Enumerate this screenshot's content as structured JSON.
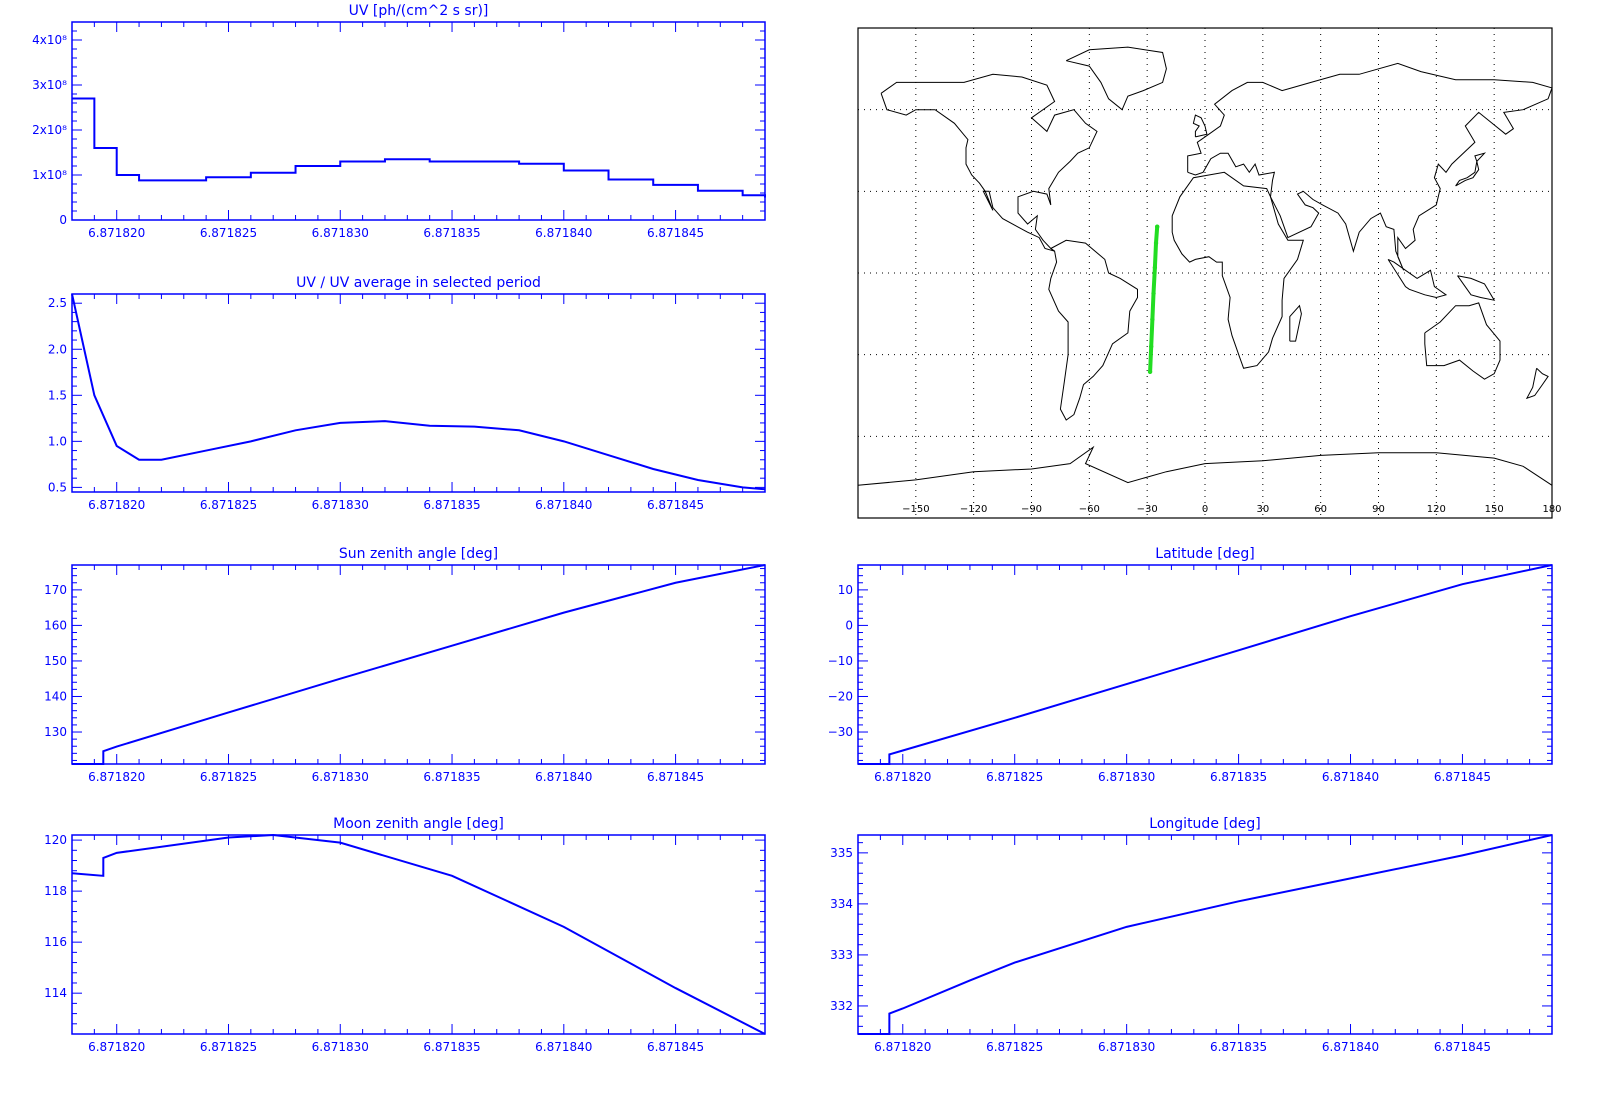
{
  "colors": {
    "axis": "#0000ff",
    "series": "#0000ff",
    "track": "#22dd22",
    "coast": "#000000"
  },
  "chart_data": [
    {
      "id": "uv",
      "type": "line",
      "title": "UV [ph/(cm^2 s sr)]",
      "xlabel": "",
      "ylabel": "",
      "xlim": [
        6.871818,
        6.871849
      ],
      "ylim": [
        0,
        440000000.0
      ],
      "xticks": [
        6.87182,
        6.871825,
        6.87183,
        6.871835,
        6.87184,
        6.871845
      ],
      "xtick_labels": [
        "6.871820",
        "6.871825",
        "6.871830",
        "6.871835",
        "6.871840",
        "6.871845"
      ],
      "yticks": [
        0,
        100000000.0,
        200000000.0,
        300000000.0,
        400000000.0
      ],
      "ytick_labels": [
        "0",
        "1x10⁸",
        "2x10⁸",
        "3x10⁸",
        "4x10⁸"
      ],
      "step": true,
      "x": [
        6.871818,
        6.871819,
        6.87182,
        6.871821,
        6.871822,
        6.871824,
        6.871826,
        6.871828,
        6.87183,
        6.871832,
        6.871834,
        6.871836,
        6.871838,
        6.87184,
        6.871842,
        6.871844,
        6.871846,
        6.871848,
        6.871849
      ],
      "y": [
        270000000.0,
        160000000.0,
        100000000.0,
        88000000.0,
        88000000.0,
        95000000.0,
        105000000.0,
        120000000.0,
        130000000.0,
        135000000.0,
        130000000.0,
        130000000.0,
        125000000.0,
        110000000.0,
        90000000.0,
        78000000.0,
        65000000.0,
        55000000.0,
        50000000.0
      ]
    },
    {
      "id": "uv-ratio",
      "type": "line",
      "title": "UV / UV average in selected period",
      "xlabel": "",
      "ylabel": "",
      "xlim": [
        6.871818,
        6.871849
      ],
      "ylim": [
        0.45,
        2.6
      ],
      "xticks": [
        6.87182,
        6.871825,
        6.87183,
        6.871835,
        6.87184,
        6.871845
      ],
      "xtick_labels": [
        "6.871820",
        "6.871825",
        "6.871830",
        "6.871835",
        "6.871840",
        "6.871845"
      ],
      "yticks": [
        0.5,
        1.0,
        1.5,
        2.0,
        2.5
      ],
      "ytick_labels": [
        "0.5",
        "1.0",
        "1.5",
        "2.0",
        "2.5"
      ],
      "step": false,
      "x": [
        6.871818,
        6.871819,
        6.87182,
        6.871821,
        6.871822,
        6.871824,
        6.871826,
        6.871828,
        6.87183,
        6.871832,
        6.871834,
        6.871836,
        6.871838,
        6.87184,
        6.871842,
        6.871844,
        6.871846,
        6.871848,
        6.871849
      ],
      "y": [
        2.6,
        1.5,
        0.95,
        0.8,
        0.8,
        0.9,
        1.0,
        1.12,
        1.2,
        1.22,
        1.17,
        1.16,
        1.12,
        1.0,
        0.85,
        0.7,
        0.58,
        0.5,
        0.48
      ]
    },
    {
      "id": "sun-zenith",
      "type": "line",
      "title": "Sun zenith angle [deg]",
      "xlabel": "",
      "ylabel": "",
      "xlim": [
        6.871818,
        6.871849
      ],
      "ylim": [
        121,
        177
      ],
      "xticks": [
        6.87182,
        6.871825,
        6.87183,
        6.871835,
        6.87184,
        6.871845
      ],
      "xtick_labels": [
        "6.871820",
        "6.871825",
        "6.871830",
        "6.871835",
        "6.871840",
        "6.871845"
      ],
      "yticks": [
        130,
        140,
        150,
        160,
        170
      ],
      "ytick_labels": [
        "130",
        "140",
        "150",
        "160",
        "170"
      ],
      "step": false,
      "x": [
        6.871818,
        6.8718194,
        6.871819401,
        6.87182,
        6.871825,
        6.87183,
        6.871835,
        6.87184,
        6.871845,
        6.871849
      ],
      "y": [
        121,
        121,
        124.6,
        125.9,
        135.5,
        145,
        154.3,
        163.6,
        172,
        177
      ]
    },
    {
      "id": "latitude",
      "type": "line",
      "title": "Latitude [deg]",
      "xlabel": "",
      "ylabel": "",
      "xlim": [
        6.871818,
        6.871849
      ],
      "ylim": [
        -39,
        17
      ],
      "xticks": [
        6.87182,
        6.871825,
        6.87183,
        6.871835,
        6.87184,
        6.871845
      ],
      "xtick_labels": [
        "6.871820",
        "6.871825",
        "6.871830",
        "6.871835",
        "6.871840",
        "6.871845"
      ],
      "yticks": [
        -30,
        -20,
        -10,
        0,
        10
      ],
      "ytick_labels": [
        "−30",
        "−20",
        "−10",
        "0",
        "10"
      ],
      "step": false,
      "x": [
        6.871818,
        6.8718194,
        6.871819401,
        6.87182,
        6.871825,
        6.87183,
        6.871835,
        6.87184,
        6.871845,
        6.871849
      ],
      "y": [
        -39,
        -39,
        -36.3,
        -35.2,
        -26,
        -16.5,
        -7,
        2.6,
        11.6,
        17
      ]
    },
    {
      "id": "moon-zenith",
      "type": "line",
      "title": "Moon zenith angle [deg]",
      "xlabel": "",
      "ylabel": "",
      "xlim": [
        6.871818,
        6.871849
      ],
      "ylim": [
        112.4,
        120.2
      ],
      "xticks": [
        6.87182,
        6.871825,
        6.87183,
        6.871835,
        6.87184,
        6.871845
      ],
      "xtick_labels": [
        "6.871820",
        "6.871825",
        "6.871830",
        "6.871835",
        "6.871840",
        "6.871845"
      ],
      "yticks": [
        114,
        116,
        118,
        120
      ],
      "ytick_labels": [
        "114",
        "116",
        "118",
        "120"
      ],
      "step": false,
      "x": [
        6.871818,
        6.8718194,
        6.871819401,
        6.87182,
        6.871825,
        6.871827,
        6.87183,
        6.871835,
        6.87184,
        6.871845,
        6.871849
      ],
      "y": [
        118.7,
        118.6,
        119.3,
        119.5,
        120.1,
        120.2,
        119.9,
        118.6,
        116.6,
        114.2,
        112.4
      ]
    },
    {
      "id": "longitude",
      "type": "line",
      "title": "Longitude [deg]",
      "xlabel": "",
      "ylabel": "",
      "xlim": [
        6.871818,
        6.871849
      ],
      "ylim": [
        331.45,
        335.35
      ],
      "xticks": [
        6.87182,
        6.871825,
        6.87183,
        6.871835,
        6.87184,
        6.871845
      ],
      "xtick_labels": [
        "6.871820",
        "6.871825",
        "6.871830",
        "6.871835",
        "6.871840",
        "6.871845"
      ],
      "yticks": [
        332,
        333,
        334,
        335
      ],
      "ytick_labels": [
        "332",
        "333",
        "334",
        "335"
      ],
      "step": false,
      "x": [
        6.871818,
        6.8718194,
        6.871819401,
        6.87182,
        6.871823,
        6.871825,
        6.87183,
        6.871835,
        6.87184,
        6.871845,
        6.871849
      ],
      "y": [
        331.45,
        331.45,
        331.85,
        331.95,
        332.5,
        332.85,
        333.55,
        334.05,
        334.5,
        334.95,
        335.35
      ]
    },
    {
      "id": "track-map",
      "type": "scatter",
      "title": "",
      "xlabel": "",
      "ylabel": "",
      "xlim": [
        -180,
        180
      ],
      "ylim": [
        -90,
        90
      ],
      "xticks": [
        -150,
        -120,
        -90,
        -60,
        -30,
        0,
        30,
        60,
        90,
        120,
        150,
        180
      ],
      "xtick_labels": [
        "−150",
        "−120",
        "−90",
        "−60",
        "−30",
        "0",
        "30",
        "60",
        "90",
        "120",
        "150",
        "180"
      ],
      "grid": true,
      "track_lon": [
        -28.5,
        -27.9,
        -27.3,
        -26.7,
        -26.0,
        -25.4,
        -24.8
      ],
      "track_lat": [
        -36.3,
        -27,
        -17,
        -7.5,
        2,
        11,
        17
      ]
    }
  ]
}
